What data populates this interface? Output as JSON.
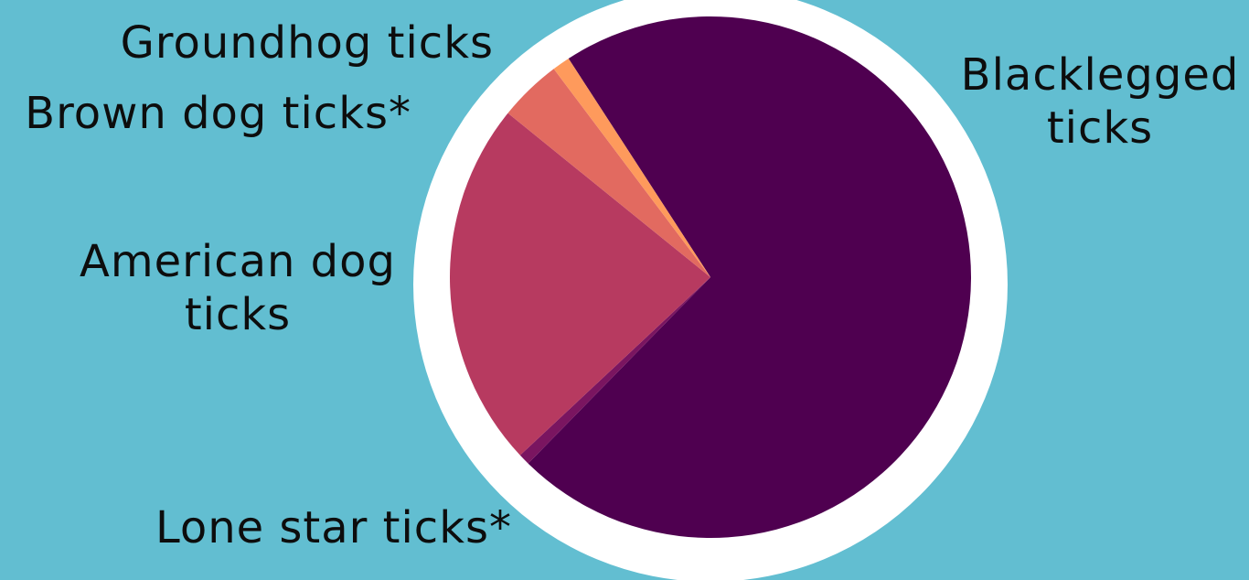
{
  "chart_data": {
    "type": "pie",
    "categories": [
      "Blacklegged ticks",
      "American dog ticks",
      "Brown dog ticks*",
      "Groundhog ticks",
      "Lone star ticks*"
    ],
    "values": [
      71.5,
      22.8,
      3.9,
      1.1,
      0.7
    ],
    "label_lines": [
      [
        "Blacklegged",
        "ticks"
      ],
      [
        "American dog",
        "ticks"
      ],
      [
        "Brown dog ticks*"
      ],
      [
        "Groundhog ticks"
      ],
      [
        "Lone star ticks*"
      ]
    ],
    "colors": [
      "#4F0050",
      "#B73A60",
      "#E26A60",
      "#FE9A5C",
      "#7A1560"
    ],
    "background": "#62BED1",
    "ring_color": "#FFFFFF"
  }
}
